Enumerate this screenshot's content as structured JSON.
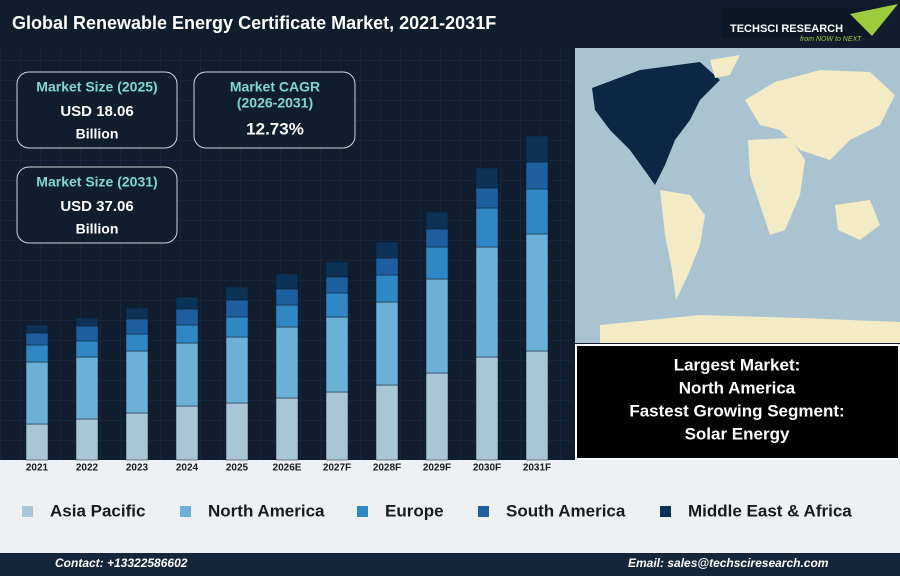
{
  "header": {
    "title": "Global Renewable Energy Certificate Market, 2021-2031F",
    "brand": "TECHSCI RESEARCH",
    "tagline": "from NOW to NEXT"
  },
  "stats": [
    {
      "label": "Market Size (2025)",
      "value": "USD 18.06",
      "unit": "Billion"
    },
    {
      "label": "Market CAGR",
      "sublabel": "(2026-2031)",
      "value": "12.73%"
    },
    {
      "label": "Market Size (2031)",
      "value": "USD 37.06",
      "unit": "Billion"
    }
  ],
  "highlights": [
    "Largest Market:",
    "North America",
    "Fastest Growing Segment:",
    "Solar Energy"
  ],
  "footer": {
    "contact": "Contact: +13322586602",
    "email": "Email: sales@techsciresearch.com"
  },
  "chart_data": {
    "type": "bar",
    "stacked": true,
    "categories": [
      "2021",
      "2022",
      "2023",
      "2024",
      "2025",
      "2026E",
      "2027F",
      "2028F",
      "2029F",
      "2030F",
      "2031F"
    ],
    "series": [
      {
        "name": "Asia Pacific",
        "color": "#a9c6d6",
        "values": [
          36,
          41,
          47,
          54,
          57,
          62,
          68,
          75,
          87,
          103,
          109
        ]
      },
      {
        "name": "North America",
        "color": "#6bb0d6",
        "values": [
          62,
          62,
          62,
          63,
          66,
          71,
          75,
          83,
          94,
          110,
          117
        ]
      },
      {
        "name": "Europe",
        "color": "#2f88c4",
        "values": [
          17,
          16,
          17,
          18,
          20,
          22,
          24,
          27,
          32,
          39,
          45
        ]
      },
      {
        "name": "South America",
        "color": "#1d5f9f",
        "values": [
          12,
          15,
          15,
          16,
          17,
          16,
          16,
          17,
          18,
          20,
          27
        ]
      },
      {
        "name": "Middle East & Africa",
        "color": "#0c3257",
        "values": [
          8,
          8,
          11,
          12,
          13,
          15,
          15,
          16,
          17,
          20,
          26
        ]
      }
    ],
    "ylim": [
      0,
      330
    ]
  }
}
